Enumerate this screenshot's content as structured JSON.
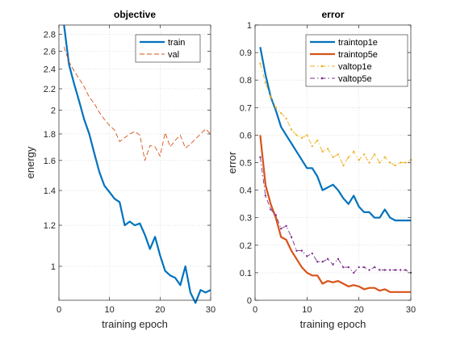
{
  "chart_data": [
    {
      "type": "line",
      "title": "objective",
      "xlabel": "training epoch",
      "ylabel": "energy",
      "xlim": [
        0,
        30
      ],
      "ylim": [
        0.86,
        2.92
      ],
      "yscale": "log",
      "grid": true,
      "legend_position": "top-right",
      "xticks": [
        "0",
        "10",
        "20",
        "30"
      ],
      "yticks": [
        {
          "value": 1.0,
          "label": "1"
        },
        {
          "value": 1.2,
          "label": "1.2"
        },
        {
          "value": 1.4,
          "label": "1.4"
        },
        {
          "value": 1.6,
          "label": "1.6"
        },
        {
          "value": 1.8,
          "label": "1.8"
        },
        {
          "value": 2.0,
          "label": "2"
        },
        {
          "value": 2.2,
          "label": "2.2"
        },
        {
          "value": 2.4,
          "label": "2.4"
        },
        {
          "value": 2.6,
          "label": "2.6"
        },
        {
          "value": 2.8,
          "label": "2.8"
        }
      ],
      "series": [
        {
          "name": "train",
          "color": "#0072bd",
          "style": "solid",
          "x": [
            1,
            2,
            3,
            4,
            5,
            6,
            7,
            8,
            9,
            10,
            11,
            12,
            13,
            14,
            15,
            16,
            17,
            18,
            19,
            20,
            21,
            22,
            23,
            24,
            25,
            26,
            27,
            28,
            29,
            30
          ],
          "values": [
            2.92,
            2.45,
            2.25,
            2.08,
            1.92,
            1.8,
            1.65,
            1.52,
            1.43,
            1.39,
            1.35,
            1.33,
            1.2,
            1.22,
            1.2,
            1.21,
            1.15,
            1.08,
            1.14,
            1.05,
            0.98,
            0.96,
            0.95,
            0.92,
            1.0,
            0.89,
            0.85,
            0.9,
            0.89,
            0.9
          ]
        },
        {
          "name": "val",
          "color": "#d95319",
          "style": "dashed",
          "x": [
            1,
            2,
            3,
            4,
            5,
            6,
            7,
            8,
            9,
            10,
            11,
            12,
            13,
            14,
            15,
            16,
            17,
            18,
            19,
            20,
            21,
            22,
            23,
            24,
            25,
            26,
            27,
            28,
            29,
            30
          ],
          "values": [
            2.65,
            2.48,
            2.38,
            2.3,
            2.22,
            2.12,
            2.06,
            1.98,
            1.92,
            1.87,
            1.83,
            1.74,
            1.77,
            1.8,
            1.82,
            1.79,
            1.6,
            1.71,
            1.7,
            1.63,
            1.81,
            1.7,
            1.75,
            1.79,
            1.69,
            1.72,
            1.76,
            1.8,
            1.84,
            1.8
          ]
        }
      ]
    },
    {
      "type": "line",
      "title": "error",
      "xlabel": "training epoch",
      "ylabel": "error",
      "xlim": [
        0,
        30
      ],
      "ylim": [
        0,
        1.0
      ],
      "grid": true,
      "legend_position": "top-right",
      "xticks": [
        "0",
        "10",
        "20",
        "30"
      ],
      "yticks": [
        {
          "value": 0.0,
          "label": "0"
        },
        {
          "value": 0.1,
          "label": "0.1"
        },
        {
          "value": 0.2,
          "label": "0.2"
        },
        {
          "value": 0.3,
          "label": "0.3"
        },
        {
          "value": 0.4,
          "label": "0.4"
        },
        {
          "value": 0.5,
          "label": "0.5"
        },
        {
          "value": 0.6,
          "label": "0.6"
        },
        {
          "value": 0.7,
          "label": "0.7"
        },
        {
          "value": 0.8,
          "label": "0.8"
        },
        {
          "value": 0.9,
          "label": "0.9"
        },
        {
          "value": 1.0,
          "label": "1"
        }
      ],
      "series": [
        {
          "name": "traintop1e",
          "color": "#0072bd",
          "style": "solid",
          "x": [
            1,
            2,
            3,
            4,
            5,
            6,
            7,
            8,
            9,
            10,
            11,
            12,
            13,
            14,
            15,
            16,
            17,
            18,
            19,
            20,
            21,
            22,
            23,
            24,
            25,
            26,
            27,
            28,
            29,
            30
          ],
          "values": [
            0.92,
            0.82,
            0.74,
            0.69,
            0.63,
            0.6,
            0.57,
            0.54,
            0.51,
            0.48,
            0.48,
            0.45,
            0.4,
            0.41,
            0.42,
            0.4,
            0.37,
            0.35,
            0.38,
            0.34,
            0.32,
            0.32,
            0.3,
            0.3,
            0.33,
            0.3,
            0.29,
            0.29,
            0.29,
            0.29
          ]
        },
        {
          "name": "traintop5e",
          "color": "#d95319",
          "style": "solid",
          "x": [
            1,
            2,
            3,
            4,
            5,
            6,
            7,
            8,
            9,
            10,
            11,
            12,
            13,
            14,
            15,
            16,
            17,
            18,
            19,
            20,
            21,
            22,
            23,
            24,
            25,
            26,
            27,
            28,
            29,
            30
          ],
          "values": [
            0.6,
            0.42,
            0.35,
            0.3,
            0.23,
            0.22,
            0.18,
            0.15,
            0.12,
            0.1,
            0.09,
            0.09,
            0.06,
            0.07,
            0.065,
            0.07,
            0.06,
            0.05,
            0.055,
            0.05,
            0.04,
            0.045,
            0.045,
            0.035,
            0.04,
            0.03,
            0.03,
            0.03,
            0.03,
            0.03
          ]
        },
        {
          "name": "valtop1e",
          "color": "#edb120",
          "style": "dashdot",
          "x": [
            1,
            2,
            3,
            4,
            5,
            6,
            7,
            8,
            9,
            10,
            11,
            12,
            13,
            14,
            15,
            16,
            17,
            18,
            19,
            20,
            21,
            22,
            23,
            24,
            25,
            26,
            27,
            28,
            29,
            30
          ],
          "values": [
            0.86,
            0.79,
            0.74,
            0.7,
            0.68,
            0.66,
            0.62,
            0.6,
            0.59,
            0.6,
            0.56,
            0.58,
            0.54,
            0.55,
            0.52,
            0.53,
            0.49,
            0.52,
            0.54,
            0.51,
            0.53,
            0.5,
            0.53,
            0.5,
            0.52,
            0.5,
            0.49,
            0.5,
            0.5,
            0.51
          ]
        },
        {
          "name": "valtop5e",
          "color": "#7e2f8e",
          "style": "dashdot",
          "x": [
            1,
            2,
            3,
            4,
            5,
            6,
            7,
            8,
            9,
            10,
            11,
            12,
            13,
            14,
            15,
            16,
            17,
            18,
            19,
            20,
            21,
            22,
            23,
            24,
            25,
            26,
            27,
            28,
            29,
            30
          ],
          "values": [
            0.52,
            0.38,
            0.33,
            0.31,
            0.26,
            0.27,
            0.23,
            0.18,
            0.18,
            0.16,
            0.17,
            0.14,
            0.14,
            0.15,
            0.13,
            0.15,
            0.12,
            0.12,
            0.1,
            0.12,
            0.12,
            0.11,
            0.12,
            0.11,
            0.11,
            0.11,
            0.11,
            0.11,
            0.11,
            0.1
          ]
        }
      ]
    }
  ]
}
